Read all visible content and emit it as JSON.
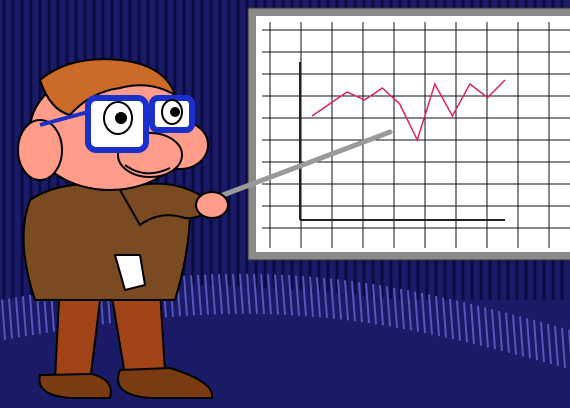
{
  "scene": {
    "subject": "presenter-cartoon",
    "colors": {
      "background": "#1a1a66",
      "background_stripe": "#0a0a44",
      "curtain_highlight": "#5555bb",
      "board_frame": "#8a8a8a",
      "board_surface": "#ffffff",
      "grid": "#111111",
      "plot_line": "#e0206a",
      "skin": "#ff9c8a",
      "hair": "#cc6a2a",
      "glasses": "#1a2fcc",
      "jacket": "#7a4a22",
      "pants": "#a04418",
      "shoes": "#7a3a12",
      "pointer": "#9a9a9a"
    },
    "board_plot": {
      "type": "line",
      "values": [
        0.55,
        0.7,
        0.85,
        0.75,
        0.9,
        0.7,
        0.25,
        0.95,
        0.55,
        0.95,
        0.78,
        1.0
      ]
    }
  }
}
